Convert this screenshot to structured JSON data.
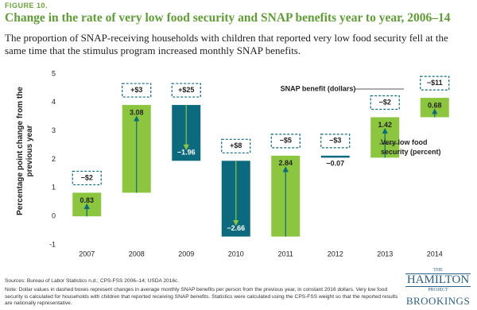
{
  "chart_data": {
    "type": "waterfall",
    "figure_label": "FIGURE 10.",
    "title": "Change in the rate of very low food security and SNAP benefits year to year, 2006–14",
    "subtitle": "The proportion of SNAP-receiving households with children that reported very low food security fell at the same time that the stimulus program increased monthly SNAP benefits.",
    "y_label": "Percentage point change from the previous year",
    "categories": [
      "2007",
      "2008",
      "2009",
      "2010",
      "2011",
      "2012",
      "2013",
      "2014"
    ],
    "series": [
      {
        "name": "Very low food security (percent)",
        "increase_color": "#8cc63e",
        "decrease_color": "#0c6a7e",
        "values": [
          0.83,
          3.08,
          -1.96,
          -2.66,
          2.84,
          -0.07,
          1.42,
          0.68
        ],
        "value_labels": [
          "0.83",
          "3.08",
          "−1.96",
          "−2.66",
          "2.84",
          "−0.07",
          "1.42",
          "0.68"
        ]
      },
      {
        "name": "SNAP benefit (dollars)",
        "color": "#0c6a7e",
        "values": [
          -2,
          3,
          25,
          8,
          -5,
          -3,
          -2,
          -11
        ],
        "value_labels": [
          "−$2",
          "+$3",
          "+$25",
          "+$8",
          "−$5",
          "−$3",
          "−$2",
          "−$11"
        ]
      }
    ],
    "ylim": [
      -1,
      5
    ],
    "yticks": [
      -1,
      0,
      1,
      2,
      3,
      4,
      5
    ],
    "grid": false,
    "source": "Sources: Bureau of Labor Statistics n.d.; CPS-FSS 2006–14; USDA 2016c.",
    "note": "Note: Dollar values in dashed boxes represent changes in average monthly SNAP benefits per person from the previous year, in constant 2016 dollars. Very low food security is calculated for households with children that reported receiving SNAP benefits. Statistics were calculated using the CPS-FSS weight so that the reported results are nationally representative."
  },
  "logo": {
    "line1": "THE",
    "line2": "HAMILTON",
    "line3": "PROJECT",
    "line4": "BROOKINGS"
  }
}
